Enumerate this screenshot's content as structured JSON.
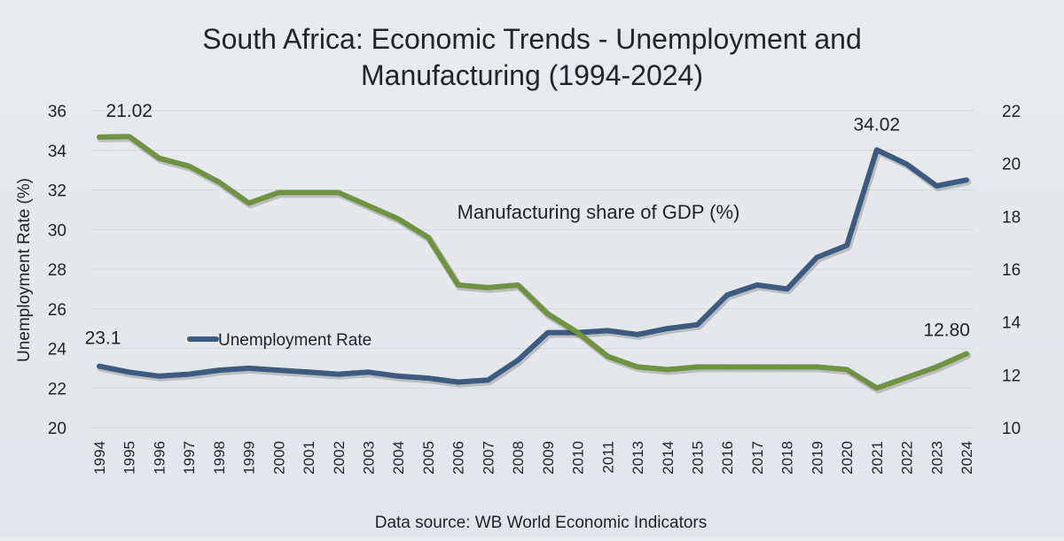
{
  "chart_data": {
    "type": "line",
    "title_line1": "South Africa: Economic Trends - Unemployment and",
    "title_line2": "Manufacturing (1994-2024)",
    "ylabel": "Unemployment Rate (%)",
    "source": "Data source: WB World Economic Indicators",
    "categories": [
      "1994",
      "1995",
      "1996",
      "1997",
      "1998",
      "1999",
      "2000",
      "2001",
      "2002",
      "2003",
      "2004",
      "2005",
      "2006",
      "2007",
      "2008",
      "2009",
      "2010",
      "2011",
      "2013",
      "2014",
      "2015",
      "2016",
      "2017",
      "2018",
      "2019",
      "2020",
      "2021",
      "2022",
      "2023",
      "2024"
    ],
    "y_left": {
      "min": 20,
      "max": 36,
      "ticks": [
        "20",
        "22",
        "24",
        "26",
        "28",
        "30",
        "32",
        "34",
        "36"
      ]
    },
    "y_right": {
      "min": 10,
      "max": 22,
      "ticks": [
        "10",
        "12",
        "14",
        "16",
        "18",
        "20",
        "22"
      ]
    },
    "grid": "horizontal",
    "series": [
      {
        "name": "Unemployment Rate",
        "axis": "left",
        "color": "#3d5a80",
        "values": [
          23.1,
          22.8,
          22.6,
          22.7,
          22.9,
          23.0,
          22.9,
          22.8,
          22.7,
          22.8,
          22.6,
          22.5,
          22.3,
          22.4,
          23.4,
          24.8,
          24.8,
          24.9,
          24.7,
          25.0,
          25.2,
          26.7,
          27.2,
          27.0,
          28.6,
          29.2,
          34.02,
          33.3,
          32.2,
          32.5
        ]
      },
      {
        "name": "Manufacturing share of GDP (%)",
        "axis": "right",
        "color": "#6f9243",
        "values": [
          21.0,
          21.02,
          20.2,
          19.9,
          19.3,
          18.5,
          18.9,
          18.9,
          18.9,
          18.4,
          17.9,
          17.2,
          15.4,
          15.3,
          15.4,
          14.3,
          13.6,
          12.7,
          12.3,
          12.2,
          12.3,
          12.3,
          12.3,
          12.3,
          12.3,
          12.2,
          11.5,
          11.9,
          12.3,
          12.8
        ]
      }
    ],
    "annotations": [
      {
        "text": "21.02",
        "series": 1,
        "index": 1
      },
      {
        "text": "23.1",
        "series": 0,
        "index": 0
      },
      {
        "text": "34.02",
        "series": 0,
        "index": 26
      },
      {
        "text": "12.80",
        "series": 1,
        "index": 29
      }
    ]
  }
}
